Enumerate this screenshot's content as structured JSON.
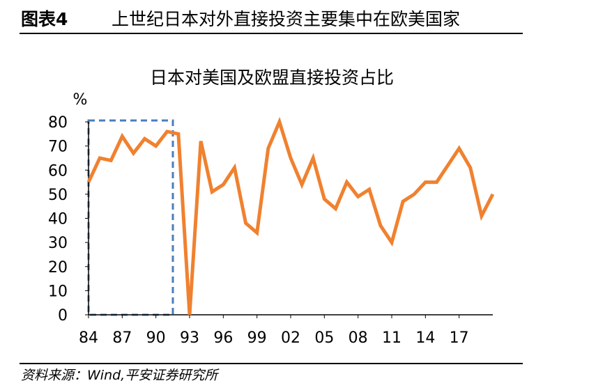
{
  "header": {
    "label": "图表4",
    "title": "上世纪日本对外直接投资主要集中在欧美国家"
  },
  "chart_data": {
    "type": "line",
    "title": "日本对美国及欧盟直接投资占比",
    "y_unit": "%",
    "categories": [
      "84",
      null,
      null,
      "87",
      null,
      null,
      "90",
      null,
      null,
      "93",
      null,
      null,
      "96",
      null,
      null,
      "99",
      null,
      null,
      "02",
      null,
      null,
      "05",
      null,
      null,
      "08",
      null,
      null,
      "11",
      null,
      null,
      "14",
      null,
      null,
      "17",
      null,
      null,
      null
    ],
    "values": [
      55,
      65,
      64,
      74,
      67,
      73,
      70,
      76,
      75,
      0,
      72,
      51,
      54,
      61,
      38,
      34,
      69,
      80,
      65,
      54,
      65,
      48,
      44,
      55,
      49,
      52,
      37,
      30,
      47,
      50,
      55,
      55,
      62,
      69,
      61,
      41,
      50
    ],
    "color": "#f0812f",
    "ylim": [
      0,
      80
    ],
    "yticks": [
      0,
      10,
      20,
      30,
      40,
      50,
      60,
      70,
      80
    ]
  },
  "source": "资料来源：Wind,平安证券研究所"
}
